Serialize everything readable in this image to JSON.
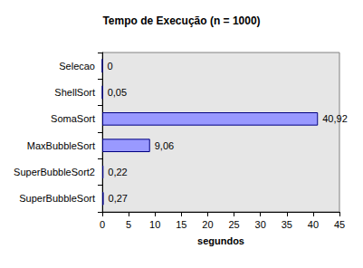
{
  "chart_data": {
    "type": "bar",
    "title": "Tempo de Execução (n = 1000)",
    "orientation": "horizontal",
    "categories": [
      "Selecao",
      "ShellSort",
      "SomaSort",
      "MaxBubbleSort",
      "SuperBubbleSort2",
      "SuperBubbleSort"
    ],
    "values": [
      0,
      0.05,
      40.92,
      9.06,
      0.22,
      0.27
    ],
    "value_labels": [
      "0",
      "0,05",
      "40,92",
      "9,06",
      "0,22",
      "0,27"
    ],
    "data_labels": true,
    "color": "#9999ff",
    "xlabel": "segundos",
    "xlim": [
      0,
      45
    ],
    "xticks": [
      0,
      5,
      10,
      15,
      20,
      25,
      30,
      35,
      40,
      45
    ],
    "grid": false
  }
}
